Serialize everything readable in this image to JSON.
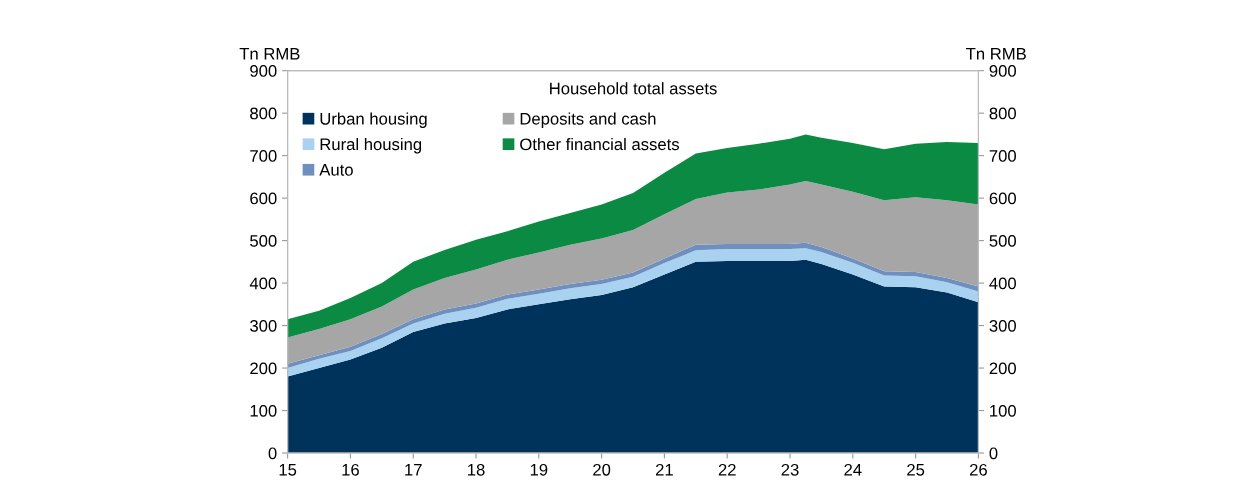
{
  "chart_data": {
    "type": "area",
    "stacked": true,
    "title": "Household total assets",
    "ylabel": "Tn RMB",
    "y2label": "Tn RMB",
    "x": [
      15,
      15.5,
      16,
      16.5,
      17,
      17.5,
      18,
      18.5,
      19,
      19.5,
      20,
      20.5,
      21,
      21.5,
      22,
      22.5,
      23,
      23.25,
      23.5,
      24,
      24.5,
      25,
      25.5,
      26
    ],
    "series": [
      {
        "name": "Urban housing",
        "color": "#00335b",
        "values": [
          180,
          200,
          220,
          248,
          285,
          305,
          318,
          338,
          350,
          362,
          372,
          390,
          420,
          450,
          452,
          452,
          452,
          455,
          445,
          420,
          392,
          390,
          378,
          355
        ]
      },
      {
        "name": "Rural housing",
        "color": "#a9d1f0",
        "values": [
          20,
          22,
          20,
          22,
          20,
          23,
          24,
          25,
          25,
          26,
          26,
          25,
          27,
          27,
          28,
          28,
          28,
          27,
          28,
          28,
          26,
          26,
          24,
          25
        ]
      },
      {
        "name": "Auto",
        "color": "#6f8fbf",
        "values": [
          10,
          8,
          10,
          10,
          10,
          10,
          10,
          10,
          10,
          10,
          10,
          10,
          11,
          13,
          12,
          12,
          12,
          13,
          12,
          10,
          10,
          10,
          10,
          12
        ]
      },
      {
        "name": "Deposits and cash",
        "color": "#a6a6a6",
        "values": [
          62,
          62,
          65,
          65,
          70,
          74,
          80,
          82,
          87,
          92,
          97,
          100,
          104,
          108,
          121,
          128,
          140,
          145,
          147,
          157,
          167,
          176,
          183,
          193
        ]
      },
      {
        "name": "Other financial assets",
        "color": "#0a8a43",
        "values": [
          43,
          43,
          50,
          55,
          65,
          66,
          70,
          67,
          73,
          75,
          80,
          87,
          98,
          107,
          105,
          108,
          108,
          110,
          110,
          115,
          120,
          126,
          137,
          145
        ]
      }
    ],
    "xlim": [
      15,
      26
    ],
    "xticks": [
      15,
      16,
      17,
      18,
      19,
      20,
      21,
      22,
      23,
      24,
      25,
      26
    ],
    "ylim": [
      0,
      900
    ],
    "yticks": [
      0,
      100,
      200,
      300,
      400,
      500,
      600,
      700,
      800,
      900
    ],
    "y2lim": [
      0,
      900
    ],
    "y2ticks": [
      0,
      100,
      200,
      300,
      400,
      500,
      600,
      700,
      800,
      900
    ],
    "grid": false,
    "legend": "top left"
  }
}
